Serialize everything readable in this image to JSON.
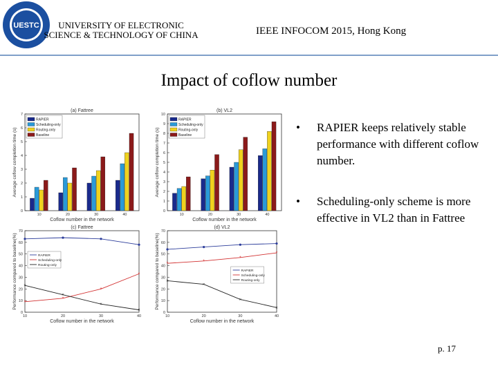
{
  "header": {
    "university": "UNIVERSITY OF ELECTRONIC SCIENCE & TECHNOLOGY OF CHINA",
    "conference": "IEEE INFOCOM 2015, Hong Kong",
    "logo_text": "UESTC"
  },
  "slide": {
    "title": "Impact of coflow number",
    "bullets": [
      "RAPIER keeps relatively stable performance with different coflow number.",
      "Scheduling-only scheme is more effective in VL2 than in Fattree"
    ],
    "bullet_symbol": "•",
    "page_number": "p. 17"
  },
  "colors": {
    "RAPIER": "#1a2a8c",
    "Scheduling-only": "#2a9ad8",
    "Routing-only": "#f0d21e",
    "Baseline": "#8b1a1a",
    "line_rapier": "#2b3c9a",
    "line_sched": "#d23030",
    "line_routing": "#222222"
  },
  "chart_data": [
    {
      "type": "bar",
      "title": "(a) Fattree",
      "xlabel": "Coflow number in the network",
      "ylabel": "Average coflow completion time (s)",
      "categories": [
        "10",
        "20",
        "30",
        "40"
      ],
      "ylim": [
        0,
        7
      ],
      "yticks": [
        "0",
        "1",
        "2",
        "3",
        "4",
        "5",
        "6",
        "7"
      ],
      "series": [
        {
          "name": "RAPIER",
          "values": [
            0.9,
            1.3,
            2.0,
            2.2
          ]
        },
        {
          "name": "Scheduling-only",
          "values": [
            1.7,
            2.4,
            2.5,
            3.4
          ]
        },
        {
          "name": "Routing-only",
          "values": [
            1.5,
            2.0,
            2.9,
            4.2
          ]
        },
        {
          "name": "Baseline",
          "values": [
            2.2,
            3.1,
            3.9,
            5.6
          ]
        }
      ]
    },
    {
      "type": "bar",
      "title": "(b) VL2",
      "xlabel": "Coflow number in the network",
      "ylabel": "Average coflow completion time (s)",
      "categories": [
        "10",
        "20",
        "30",
        "40"
      ],
      "ylim": [
        0,
        10
      ],
      "yticks": [
        "0",
        "1",
        "2",
        "3",
        "4",
        "5",
        "6",
        "7",
        "8",
        "9",
        "10"
      ],
      "series": [
        {
          "name": "RAPIER",
          "values": [
            1.8,
            3.3,
            4.5,
            5.7
          ]
        },
        {
          "name": "Scheduling-only",
          "values": [
            2.3,
            3.6,
            5.0,
            6.4
          ]
        },
        {
          "name": "Routing-only",
          "values": [
            2.5,
            4.2,
            6.3,
            8.2
          ]
        },
        {
          "name": "Baseline",
          "values": [
            3.5,
            5.8,
            7.6,
            9.2
          ]
        }
      ]
    },
    {
      "type": "line",
      "title": "(c) Fattree",
      "xlabel": "Coflow number in the network",
      "ylabel": "Performance compared to baseline(%)",
      "x": [
        10,
        20,
        30,
        40
      ],
      "xticks": [
        "10",
        "20",
        "30",
        "40"
      ],
      "ylim": [
        0,
        70
      ],
      "series": [
        {
          "name": "RAPIER",
          "values": [
            63,
            64,
            63,
            58
          ]
        },
        {
          "name": "Scheduling-only",
          "values": [
            9,
            12,
            20,
            33
          ]
        },
        {
          "name": "Routing-only",
          "values": [
            23,
            15,
            7,
            2
          ]
        }
      ]
    },
    {
      "type": "line",
      "title": "(d) VL2",
      "xlabel": "Coflow number in the network",
      "ylabel": "Performance compared to baseline(%)",
      "x": [
        10,
        20,
        30,
        40
      ],
      "xticks": [
        "10",
        "20",
        "30",
        "40"
      ],
      "ylim": [
        0,
        70
      ],
      "series": [
        {
          "name": "RAPIER",
          "values": [
            54,
            56,
            58,
            59
          ]
        },
        {
          "name": "Scheduling-only",
          "values": [
            42,
            44,
            47,
            51
          ]
        },
        {
          "name": "Routing-only",
          "values": [
            27,
            24,
            11,
            4
          ]
        }
      ]
    }
  ]
}
